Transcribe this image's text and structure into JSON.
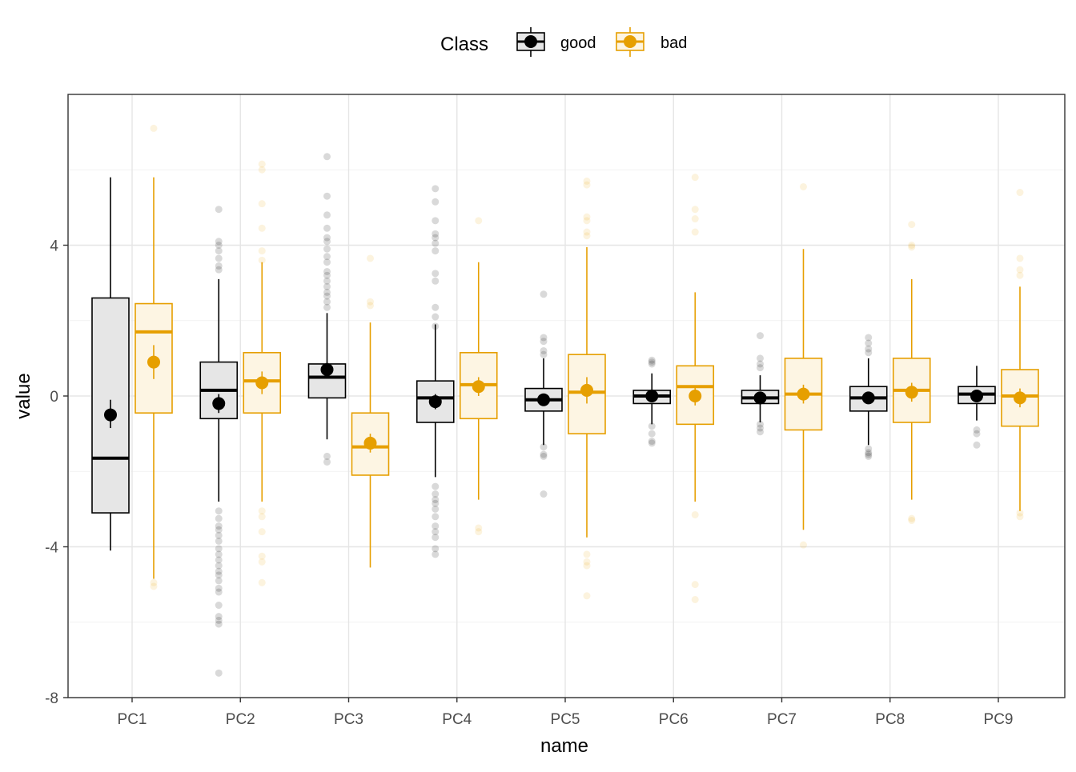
{
  "chart_data": {
    "type": "boxplot",
    "xlabel": "name",
    "ylabel": "value",
    "legend": {
      "title": "Class",
      "position": "top",
      "entries": [
        {
          "name": "good",
          "color": "#000000",
          "fill": "#e6e6e6"
        },
        {
          "name": "bad",
          "color": "#e69f00",
          "fill": "#fdf5e3"
        }
      ]
    },
    "ylim": [
      -8,
      8
    ],
    "yticks": [
      -8,
      -4,
      0,
      4
    ],
    "ytick_labels": [
      "-8",
      "-4",
      "0",
      "4"
    ],
    "grid": true,
    "categories": [
      "PC1",
      "PC2",
      "PC3",
      "PC4",
      "PC5",
      "PC6",
      "PC7",
      "PC8",
      "PC9"
    ],
    "series": [
      {
        "name": "good",
        "color": "#000000",
        "fill": "#e6e6e6",
        "boxes": [
          {
            "q1": -3.1,
            "median": -1.65,
            "q3": 2.6,
            "whisker_low": -4.1,
            "whisker_high": 5.8,
            "mean": -0.5,
            "mean_ci": [
              -0.85,
              -0.1
            ],
            "outliers": []
          },
          {
            "q1": -0.6,
            "median": 0.15,
            "q3": 0.9,
            "whisker_low": -2.8,
            "whisker_high": 3.1,
            "mean": -0.2,
            "mean_ci": [
              -0.45,
              0.05
            ],
            "outliers": [
              4.95,
              4.1,
              4.0,
              3.85,
              3.65,
              3.45,
              3.35,
              -3.05,
              -3.25,
              -3.45,
              -3.55,
              -3.7,
              -3.85,
              -4.05,
              -4.2,
              -4.35,
              -4.5,
              -4.65,
              -4.75,
              -4.9,
              -5.1,
              -5.2,
              -5.55,
              -5.85,
              -5.95,
              -6.05,
              -7.35
            ]
          },
          {
            "q1": -0.05,
            "median": 0.5,
            "q3": 0.85,
            "whisker_low": -1.15,
            "whisker_high": 2.2,
            "mean": 0.7,
            "mean_ci": [
              0.5,
              0.9
            ],
            "outliers": [
              6.35,
              5.3,
              4.8,
              4.45,
              4.2,
              4.1,
              3.9,
              3.7,
              3.55,
              3.3,
              3.2,
              3.05,
              2.9,
              2.75,
              2.65,
              2.5,
              2.35,
              -1.6,
              -1.75
            ]
          },
          {
            "q1": -0.7,
            "median": -0.05,
            "q3": 0.4,
            "whisker_low": -2.15,
            "whisker_high": 1.9,
            "mean": -0.15,
            "mean_ci": [
              -0.35,
              0.05
            ],
            "outliers": [
              5.5,
              5.15,
              4.65,
              4.3,
              4.2,
              4.05,
              3.85,
              3.25,
              3.05,
              2.35,
              2.1,
              1.85,
              -2.4,
              -2.6,
              -2.75,
              -2.85,
              -3.0,
              -3.2,
              -3.45,
              -3.6,
              -3.75,
              -4.05,
              -4.2
            ]
          },
          {
            "q1": -0.4,
            "median": -0.1,
            "q3": 0.2,
            "whisker_low": -1.3,
            "whisker_high": 1.0,
            "mean": -0.1,
            "mean_ci": [
              -0.25,
              0.05
            ],
            "outliers": [
              2.7,
              1.55,
              1.45,
              1.2,
              1.1,
              -1.35,
              -1.55,
              -1.6,
              -2.6
            ]
          },
          {
            "q1": -0.2,
            "median": 0.0,
            "q3": 0.15,
            "whisker_low": -0.75,
            "whisker_high": 0.6,
            "mean": 0.0,
            "mean_ci": [
              -0.12,
              0.1
            ],
            "outliers": [
              0.95,
              0.9,
              0.85,
              -0.8,
              -1.0,
              -1.2,
              -1.25
            ]
          },
          {
            "q1": -0.2,
            "median": -0.05,
            "q3": 0.15,
            "whisker_low": -0.7,
            "whisker_high": 0.55,
            "mean": -0.05,
            "mean_ci": [
              -0.15,
              0.05
            ],
            "outliers": [
              1.6,
              1.0,
              0.85,
              0.75,
              -0.75,
              -0.85,
              -0.95
            ]
          },
          {
            "q1": -0.4,
            "median": -0.05,
            "q3": 0.25,
            "whisker_low": -1.3,
            "whisker_high": 1.0,
            "mean": -0.05,
            "mean_ci": [
              -0.18,
              0.08
            ],
            "outliers": [
              1.55,
              1.4,
              1.25,
              1.15,
              -1.4,
              -1.5,
              -1.55,
              -1.6
            ]
          },
          {
            "q1": -0.2,
            "median": 0.05,
            "q3": 0.25,
            "whisker_low": -0.65,
            "whisker_high": 0.8,
            "mean": 0.0,
            "mean_ci": [
              -0.1,
              0.1
            ],
            "outliers": [
              -0.9,
              -1.0,
              -1.3
            ]
          }
        ]
      },
      {
        "name": "bad",
        "color": "#e69f00",
        "fill": "#fdf5e3",
        "boxes": [
          {
            "q1": -0.45,
            "median": 1.7,
            "q3": 2.45,
            "whisker_low": -4.85,
            "whisker_high": 5.8,
            "mean": 0.9,
            "mean_ci": [
              0.45,
              1.35
            ],
            "outliers": [
              7.1,
              -4.95,
              -5.05
            ]
          },
          {
            "q1": -0.45,
            "median": 0.4,
            "q3": 1.15,
            "whisker_low": -2.8,
            "whisker_high": 3.55,
            "mean": 0.35,
            "mean_ci": [
              0.05,
              0.65
            ],
            "outliers": [
              6.15,
              6.0,
              5.1,
              4.45,
              3.85,
              3.6,
              -3.05,
              -3.2,
              -3.6,
              -4.25,
              -4.4,
              -4.95
            ]
          },
          {
            "q1": -2.1,
            "median": -1.35,
            "q3": -0.45,
            "whisker_low": -4.55,
            "whisker_high": 1.95,
            "mean": -1.25,
            "mean_ci": [
              -1.5,
              -1.0
            ],
            "outliers": [
              3.65,
              2.5,
              2.4
            ]
          },
          {
            "q1": -0.6,
            "median": 0.3,
            "q3": 1.15,
            "whisker_low": -2.75,
            "whisker_high": 3.55,
            "mean": 0.25,
            "mean_ci": [
              0.0,
              0.5
            ],
            "outliers": [
              4.65,
              -3.5,
              -3.6
            ]
          },
          {
            "q1": -1.0,
            "median": 0.1,
            "q3": 1.1,
            "whisker_low": -3.75,
            "whisker_high": 3.95,
            "mean": 0.15,
            "mean_ci": [
              -0.2,
              0.5
            ],
            "outliers": [
              5.7,
              5.6,
              4.75,
              4.65,
              4.35,
              4.25,
              -4.2,
              -4.4,
              -4.5,
              -5.3
            ]
          },
          {
            "q1": -0.75,
            "median": 0.25,
            "q3": 0.8,
            "whisker_low": -2.8,
            "whisker_high": 2.75,
            "mean": 0.0,
            "mean_ci": [
              -0.25,
              0.25
            ],
            "outliers": [
              5.8,
              4.95,
              4.7,
              4.35,
              -3.15,
              -5.0,
              -5.4
            ]
          },
          {
            "q1": -0.9,
            "median": 0.05,
            "q3": 1.0,
            "whisker_low": -3.55,
            "whisker_high": 3.9,
            "mean": 0.05,
            "mean_ci": [
              -0.2,
              0.3
            ],
            "outliers": [
              5.55,
              -3.95
            ]
          },
          {
            "q1": -0.7,
            "median": 0.15,
            "q3": 1.0,
            "whisker_low": -2.75,
            "whisker_high": 3.1,
            "mean": 0.1,
            "mean_ci": [
              -0.15,
              0.35
            ],
            "outliers": [
              4.55,
              4.0,
              3.95,
              -3.25,
              -3.3
            ]
          },
          {
            "q1": -0.8,
            "median": 0.0,
            "q3": 0.7,
            "whisker_low": -3.05,
            "whisker_high": 2.9,
            "mean": -0.05,
            "mean_ci": [
              -0.3,
              0.2
            ],
            "outliers": [
              5.4,
              3.65,
              3.35,
              3.2,
              -3.1,
              -3.2
            ]
          }
        ]
      }
    ]
  }
}
